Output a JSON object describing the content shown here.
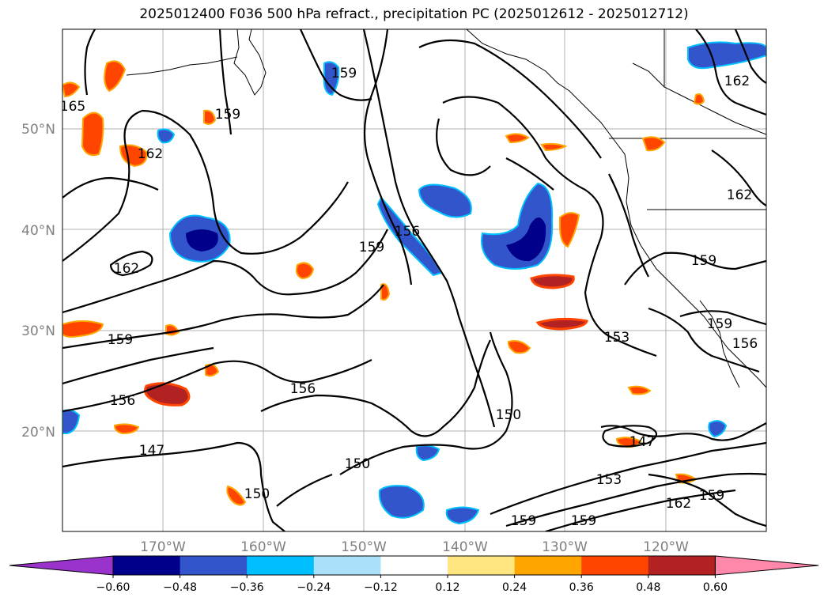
{
  "title": "2025012400 F036 500 hPa refract., precipitation PC (2025012612 - 2025012712)",
  "map": {
    "lat_labels": [
      {
        "label": "50°N",
        "lat": 50
      },
      {
        "label": "40°N",
        "lat": 40
      },
      {
        "label": "30°N",
        "lat": 30
      },
      {
        "label": "20°N",
        "lat": 20
      }
    ],
    "lon_labels": [
      {
        "label": "170°W",
        "lon": -170
      },
      {
        "label": "160°W",
        "lon": -160
      },
      {
        "label": "150°W",
        "lon": -150
      },
      {
        "label": "140°W",
        "lon": -140
      },
      {
        "label": "130°W",
        "lon": -130
      },
      {
        "label": "120°W",
        "lon": -120
      }
    ],
    "contour_labels": [
      "165",
      "162",
      "159",
      "159",
      "162",
      "159",
      "156",
      "162",
      "159",
      "156",
      "159",
      "147",
      "156",
      "150",
      "150",
      "150",
      "153",
      "147",
      "153",
      "162",
      "159",
      "159",
      "159",
      "159",
      "156",
      "162"
    ]
  },
  "colorbar": {
    "colors": [
      "#9933cc",
      "#00008b",
      "#3355cc",
      "#00bfff",
      "#aae0fa",
      "#ffffff",
      "#ffe680",
      "#ffa500",
      "#ff4500",
      "#b22222",
      "#ff88aa"
    ],
    "ticks": [
      "−0.60",
      "−0.48",
      "−0.36",
      "−0.24",
      "−0.12",
      "0.12",
      "0.24",
      "0.36",
      "0.48",
      "0.60"
    ]
  }
}
